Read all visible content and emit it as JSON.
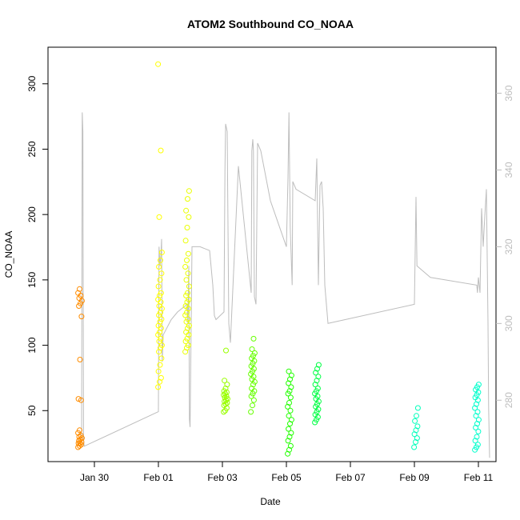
{
  "chart_data": {
    "type": "scatter",
    "title": "ATOM2 Southbound CO_NOAA",
    "xlabel": "Date",
    "ylabel": "CO_NOAA",
    "x_ticks": [
      "Jan 30",
      "Feb 01",
      "Feb 03",
      "Feb 05",
      "Feb 07",
      "Feb 09",
      "Feb 11"
    ],
    "x_tick_days": [
      1,
      3,
      5,
      7,
      9,
      11,
      13
    ],
    "xlim_days": [
      -0.45,
      13.55
    ],
    "ylim": [
      11,
      328
    ],
    "y_ticks": [
      50,
      100,
      150,
      200,
      250,
      300
    ],
    "right_axis": {
      "ylim": [
        264,
        372
      ],
      "ticks": [
        280,
        300,
        320,
        340,
        360
      ],
      "color": "#bdbdbd"
    },
    "grid": false,
    "point_groups": [
      {
        "day": 0.55,
        "color": "#ff8c00",
        "y": [
          22,
          23,
          24,
          25,
          25,
          26,
          27,
          28,
          29,
          30,
          31,
          33,
          35,
          58,
          59,
          89,
          122,
          130,
          132,
          134,
          136,
          138,
          140,
          143
        ]
      },
      {
        "day": 3.05,
        "color": "#ffff00",
        "y": [
          68,
          72,
          75,
          80,
          85,
          90,
          95,
          98,
          100,
          103,
          105,
          108,
          110,
          113,
          115,
          118,
          120,
          123,
          125,
          128,
          130,
          133,
          135,
          138,
          140,
          145,
          150,
          155,
          160,
          165,
          171,
          198,
          249,
          315
        ]
      },
      {
        "day": 3.9,
        "color": "#eaff00",
        "y": [
          95,
          98,
          100,
          103,
          105,
          108,
          110,
          113,
          115,
          118,
          120,
          123,
          125,
          128,
          130,
          133,
          135,
          138,
          140,
          145,
          150,
          155,
          160,
          165,
          170,
          180,
          190,
          198,
          203,
          212,
          218
        ]
      },
      {
        "day": 5.1,
        "color": "#99ff00",
        "y": [
          49,
          50,
          52,
          54,
          55,
          56,
          57,
          58,
          59,
          60,
          61,
          62,
          63,
          64,
          65,
          67,
          70,
          73,
          96
        ]
      },
      {
        "day": 5.95,
        "color": "#66ff00",
        "y": [
          49,
          54,
          58,
          61,
          63,
          65,
          67,
          70,
          72,
          74,
          76,
          78,
          80,
          82,
          84,
          86,
          88,
          90,
          92,
          94,
          97,
          105
        ]
      },
      {
        "day": 7.1,
        "color": "#22ff00",
        "y": [
          17,
          20,
          23,
          27,
          30,
          33,
          36,
          40,
          43,
          46,
          50,
          53,
          56,
          60,
          63,
          65,
          68,
          71,
          74,
          77,
          80
        ]
      },
      {
        "day": 7.95,
        "color": "#00ff44",
        "y": [
          41,
          43,
          45,
          47,
          49,
          51,
          53,
          55,
          57,
          59,
          61,
          63,
          65,
          67,
          70,
          73,
          76,
          79,
          82,
          85
        ]
      },
      {
        "day": 11.05,
        "color": "#00ffbb",
        "y": [
          22,
          26,
          29,
          32,
          35,
          38,
          42,
          46,
          52
        ]
      },
      {
        "day": 12.95,
        "color": "#00ffcc",
        "y": [
          20,
          22,
          24,
          27,
          30,
          34,
          37,
          40,
          43,
          46,
          49,
          52,
          55,
          58,
          60,
          62,
          64,
          66,
          68,
          70
        ]
      }
    ],
    "secondary_line": {
      "color": "#bdbdbd",
      "points": [
        [
          0.6,
          270
        ],
        [
          0.62,
          355
        ],
        [
          0.64,
          350
        ],
        [
          0.66,
          270
        ],
        [
          0.68,
          268
        ],
        [
          3.0,
          277
        ],
        [
          3.02,
          320
        ],
        [
          3.05,
          315
        ],
        [
          3.08,
          318
        ],
        [
          3.1,
          322
        ],
        [
          3.12,
          290
        ],
        [
          3.15,
          297
        ],
        [
          3.4,
          301
        ],
        [
          3.6,
          303
        ],
        [
          3.9,
          305
        ],
        [
          3.92,
          300
        ],
        [
          3.95,
          315
        ],
        [
          3.97,
          275
        ],
        [
          3.99,
          273
        ],
        [
          4.05,
          320
        ],
        [
          4.1,
          320
        ],
        [
          4.3,
          320
        ],
        [
          4.6,
          319
        ],
        [
          4.7,
          310
        ],
        [
          4.75,
          302
        ],
        [
          4.8,
          301
        ],
        [
          5.05,
          303
        ],
        [
          5.08,
          340
        ],
        [
          5.1,
          352
        ],
        [
          5.15,
          350
        ],
        [
          5.2,
          300
        ],
        [
          5.25,
          295
        ],
        [
          5.5,
          341
        ],
        [
          5.9,
          308
        ],
        [
          5.92,
          345
        ],
        [
          5.95,
          348
        ],
        [
          5.97,
          345
        ],
        [
          6.0,
          307
        ],
        [
          6.05,
          305
        ],
        [
          6.1,
          347
        ],
        [
          6.2,
          345
        ],
        [
          6.5,
          332
        ],
        [
          7.0,
          320
        ],
        [
          7.05,
          338
        ],
        [
          7.08,
          355
        ],
        [
          7.12,
          325
        ],
        [
          7.18,
          310
        ],
        [
          7.2,
          337
        ],
        [
          7.3,
          335
        ],
        [
          7.9,
          332
        ],
        [
          7.95,
          343
        ],
        [
          8.0,
          310
        ],
        [
          8.05,
          336
        ],
        [
          8.1,
          337
        ],
        [
          8.15,
          330
        ],
        [
          8.2,
          310
        ],
        [
          8.3,
          300
        ],
        [
          11.0,
          305
        ],
        [
          11.05,
          333
        ],
        [
          11.08,
          315
        ],
        [
          11.5,
          312
        ],
        [
          12.95,
          310
        ],
        [
          12.97,
          308
        ],
        [
          13.0,
          312
        ],
        [
          13.05,
          308
        ],
        [
          13.1,
          330
        ],
        [
          13.15,
          320
        ],
        [
          13.2,
          328
        ],
        [
          13.25,
          335
        ],
        [
          13.3,
          300
        ],
        [
          13.32,
          278
        ],
        [
          13.35,
          265
        ]
      ]
    }
  }
}
